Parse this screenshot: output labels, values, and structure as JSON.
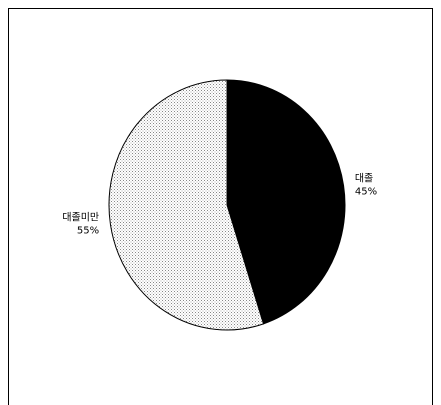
{
  "chart_data": {
    "type": "pie",
    "categories": [
      "대졸",
      "대졸미만"
    ],
    "values": [
      45,
      55
    ],
    "value_labels": [
      "45%",
      "55%"
    ],
    "colors": [
      "#000000",
      "dots"
    ]
  }
}
